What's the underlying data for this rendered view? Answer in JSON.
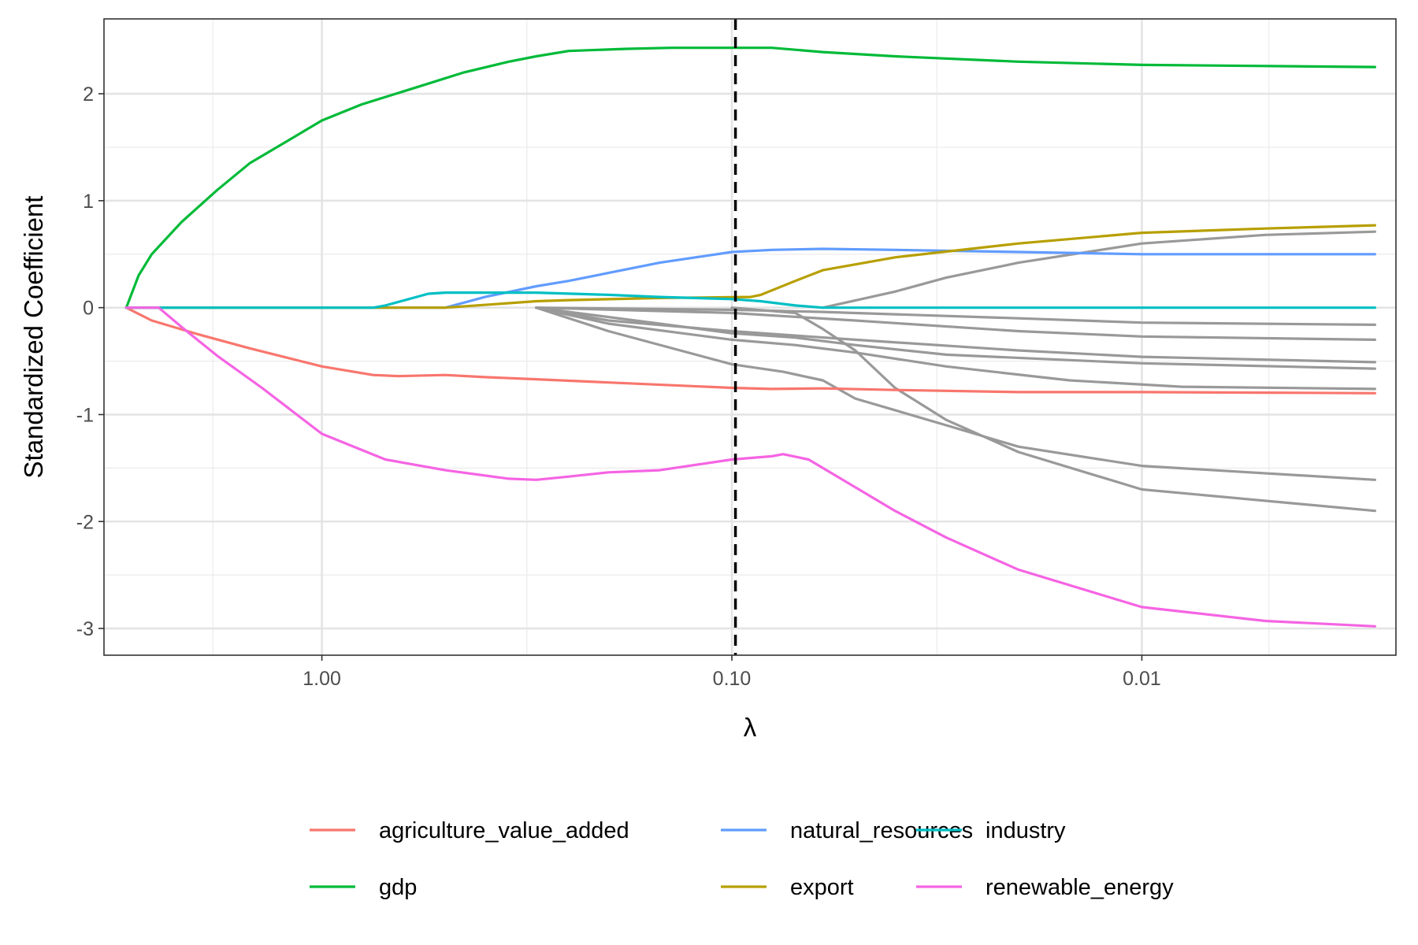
{
  "chart_data": {
    "type": "line",
    "title": "",
    "xlabel": "λ",
    "ylabel": "Standardized Coefficient",
    "x_scale": "log-reversed",
    "xlim": [
      3.4,
      0.0024
    ],
    "ylim": [
      -3.25,
      2.7
    ],
    "x_ticks": [
      {
        "value": 1.0,
        "label": "1.00"
      },
      {
        "value": 0.1,
        "label": "0.10"
      },
      {
        "value": 0.01,
        "label": "0.01"
      }
    ],
    "y_ticks": [
      {
        "value": 2,
        "label": "2"
      },
      {
        "value": 1,
        "label": "1"
      },
      {
        "value": 0,
        "label": "0"
      },
      {
        "value": -1,
        "label": "-1"
      },
      {
        "value": -2,
        "label": "-2"
      },
      {
        "value": -3,
        "label": "-3"
      }
    ],
    "grid": true,
    "vline": {
      "x": 0.098,
      "style": "dashed",
      "color": "#000000"
    },
    "legend": {
      "position": "bottom",
      "columns": 3
    },
    "series": [
      {
        "name": "agriculture_value_added",
        "color": "#F8766D",
        "legend": true,
        "points": [
          [
            3.0,
            0
          ],
          [
            2.6,
            -0.12
          ],
          [
            2.0,
            -0.25
          ],
          [
            1.5,
            -0.38
          ],
          [
            1.0,
            -0.55
          ],
          [
            0.75,
            -0.63
          ],
          [
            0.65,
            -0.64
          ],
          [
            0.5,
            -0.63
          ],
          [
            0.4,
            -0.65
          ],
          [
            0.3,
            -0.67
          ],
          [
            0.2,
            -0.7
          ],
          [
            0.1,
            -0.75
          ],
          [
            0.08,
            -0.76
          ],
          [
            0.06,
            -0.755
          ],
          [
            0.04,
            -0.77
          ],
          [
            0.02,
            -0.79
          ],
          [
            0.01,
            -0.79
          ],
          [
            0.005,
            -0.795
          ],
          [
            0.0027,
            -0.8
          ]
        ]
      },
      {
        "name": "gdp",
        "color": "#00BA38",
        "legend": true,
        "points": [
          [
            3.0,
            0
          ],
          [
            2.8,
            0.3
          ],
          [
            2.6,
            0.5
          ],
          [
            2.2,
            0.8
          ],
          [
            1.8,
            1.1
          ],
          [
            1.5,
            1.35
          ],
          [
            1.2,
            1.57
          ],
          [
            1.0,
            1.75
          ],
          [
            0.8,
            1.9
          ],
          [
            0.6,
            2.05
          ],
          [
            0.45,
            2.2
          ],
          [
            0.35,
            2.3
          ],
          [
            0.3,
            2.35
          ],
          [
            0.25,
            2.4
          ],
          [
            0.18,
            2.42
          ],
          [
            0.14,
            2.43
          ],
          [
            0.1,
            2.43
          ],
          [
            0.08,
            2.43
          ],
          [
            0.06,
            2.39
          ],
          [
            0.04,
            2.35
          ],
          [
            0.02,
            2.3
          ],
          [
            0.01,
            2.27
          ],
          [
            0.005,
            2.26
          ],
          [
            0.0027,
            2.25
          ]
        ]
      },
      {
        "name": "natural_resources",
        "color": "#619CFF",
        "legend": true,
        "points": [
          [
            3.0,
            0
          ],
          [
            0.5,
            0
          ],
          [
            0.4,
            0.1
          ],
          [
            0.3,
            0.2
          ],
          [
            0.25,
            0.25
          ],
          [
            0.15,
            0.42
          ],
          [
            0.1,
            0.52
          ],
          [
            0.08,
            0.54
          ],
          [
            0.06,
            0.55
          ],
          [
            0.04,
            0.54
          ],
          [
            0.02,
            0.52
          ],
          [
            0.01,
            0.5
          ],
          [
            0.005,
            0.5
          ],
          [
            0.0027,
            0.5
          ]
        ]
      },
      {
        "name": "export",
        "color": "#B79F00",
        "legend": true,
        "points": [
          [
            3.0,
            0
          ],
          [
            0.5,
            0
          ],
          [
            0.3,
            0.06
          ],
          [
            0.25,
            0.07
          ],
          [
            0.15,
            0.09
          ],
          [
            0.09,
            0.1
          ],
          [
            0.085,
            0.12
          ],
          [
            0.07,
            0.25
          ],
          [
            0.06,
            0.35
          ],
          [
            0.04,
            0.47
          ],
          [
            0.02,
            0.6
          ],
          [
            0.01,
            0.7
          ],
          [
            0.005,
            0.74
          ],
          [
            0.0027,
            0.77
          ]
        ]
      },
      {
        "name": "industry",
        "color": "#00BFC4",
        "legend": true,
        "points": [
          [
            3.0,
            0
          ],
          [
            0.75,
            0
          ],
          [
            0.7,
            0.02
          ],
          [
            0.55,
            0.13
          ],
          [
            0.5,
            0.14
          ],
          [
            0.3,
            0.14
          ],
          [
            0.2,
            0.12
          ],
          [
            0.15,
            0.1
          ],
          [
            0.1,
            0.08
          ],
          [
            0.085,
            0.06
          ],
          [
            0.07,
            0.02
          ],
          [
            0.06,
            0
          ],
          [
            0.03,
            0
          ],
          [
            0.0027,
            0
          ]
        ]
      },
      {
        "name": "renewable_energy",
        "color": "#F564E3",
        "legend": true,
        "points": [
          [
            3.0,
            0
          ],
          [
            2.5,
            0
          ],
          [
            2.2,
            -0.18
          ],
          [
            1.8,
            -0.45
          ],
          [
            1.4,
            -0.75
          ],
          [
            1.0,
            -1.18
          ],
          [
            0.7,
            -1.42
          ],
          [
            0.5,
            -1.52
          ],
          [
            0.35,
            -1.6
          ],
          [
            0.3,
            -1.61
          ],
          [
            0.25,
            -1.58
          ],
          [
            0.2,
            -1.54
          ],
          [
            0.15,
            -1.52
          ],
          [
            0.1,
            -1.42
          ],
          [
            0.08,
            -1.39
          ],
          [
            0.075,
            -1.37
          ],
          [
            0.065,
            -1.42
          ],
          [
            0.05,
            -1.68
          ],
          [
            0.04,
            -1.9
          ],
          [
            0.03,
            -2.15
          ],
          [
            0.02,
            -2.45
          ],
          [
            0.01,
            -2.8
          ],
          [
            0.005,
            -2.93
          ],
          [
            0.0027,
            -2.98
          ]
        ]
      },
      {
        "name": "",
        "color": "#999999",
        "legend": false,
        "points": [
          [
            0.3,
            0
          ],
          [
            0.1,
            -0.02
          ],
          [
            0.06,
            -0.04
          ],
          [
            0.02,
            -0.1
          ],
          [
            0.01,
            -0.14
          ],
          [
            0.0027,
            -0.16
          ]
        ]
      },
      {
        "name": "",
        "color": "#999999",
        "legend": false,
        "points": [
          [
            0.3,
            0
          ],
          [
            0.1,
            -0.05
          ],
          [
            0.05,
            -0.12
          ],
          [
            0.02,
            -0.22
          ],
          [
            0.01,
            -0.27
          ],
          [
            0.0027,
            -0.3
          ]
        ]
      },
      {
        "name": "",
        "color": "#999999",
        "legend": false,
        "points": [
          [
            0.3,
            0
          ],
          [
            0.2,
            -0.12
          ],
          [
            0.1,
            -0.22
          ],
          [
            0.05,
            -0.3
          ],
          [
            0.02,
            -0.4
          ],
          [
            0.01,
            -0.46
          ],
          [
            0.0027,
            -0.51
          ]
        ]
      },
      {
        "name": "",
        "color": "#999999",
        "legend": false,
        "points": [
          [
            0.3,
            0
          ],
          [
            0.15,
            -0.15
          ],
          [
            0.1,
            -0.24
          ],
          [
            0.07,
            -0.28
          ],
          [
            0.05,
            -0.35
          ],
          [
            0.03,
            -0.44
          ],
          [
            0.01,
            -0.52
          ],
          [
            0.0027,
            -0.57
          ]
        ]
      },
      {
        "name": "",
        "color": "#999999",
        "legend": false,
        "points": [
          [
            0.3,
            0
          ],
          [
            0.2,
            -0.15
          ],
          [
            0.1,
            -0.3
          ],
          [
            0.07,
            -0.35
          ],
          [
            0.05,
            -0.42
          ],
          [
            0.03,
            -0.55
          ],
          [
            0.015,
            -0.68
          ],
          [
            0.008,
            -0.74
          ],
          [
            0.0027,
            -0.76
          ]
        ]
      },
      {
        "name": "",
        "color": "#999999",
        "legend": false,
        "points": [
          [
            0.3,
            0
          ],
          [
            0.2,
            -0.22
          ],
          [
            0.1,
            -0.53
          ],
          [
            0.075,
            -0.6
          ],
          [
            0.06,
            -0.68
          ],
          [
            0.05,
            -0.85
          ],
          [
            0.03,
            -1.1
          ],
          [
            0.02,
            -1.3
          ],
          [
            0.01,
            -1.48
          ],
          [
            0.0027,
            -1.61
          ]
        ]
      },
      {
        "name": "",
        "color": "#999999",
        "legend": false,
        "points": [
          [
            0.1,
            0
          ],
          [
            0.07,
            -0.05
          ],
          [
            0.06,
            -0.2
          ],
          [
            0.05,
            -0.4
          ],
          [
            0.04,
            -0.75
          ],
          [
            0.03,
            -1.05
          ],
          [
            0.02,
            -1.35
          ],
          [
            0.01,
            -1.7
          ],
          [
            0.0027,
            -1.9
          ]
        ]
      },
      {
        "name": "",
        "color": "#999999",
        "legend": false,
        "points": [
          [
            0.06,
            0
          ],
          [
            0.04,
            0.15
          ],
          [
            0.03,
            0.28
          ],
          [
            0.02,
            0.42
          ],
          [
            0.01,
            0.6
          ],
          [
            0.005,
            0.68
          ],
          [
            0.0027,
            0.71
          ]
        ]
      }
    ]
  }
}
